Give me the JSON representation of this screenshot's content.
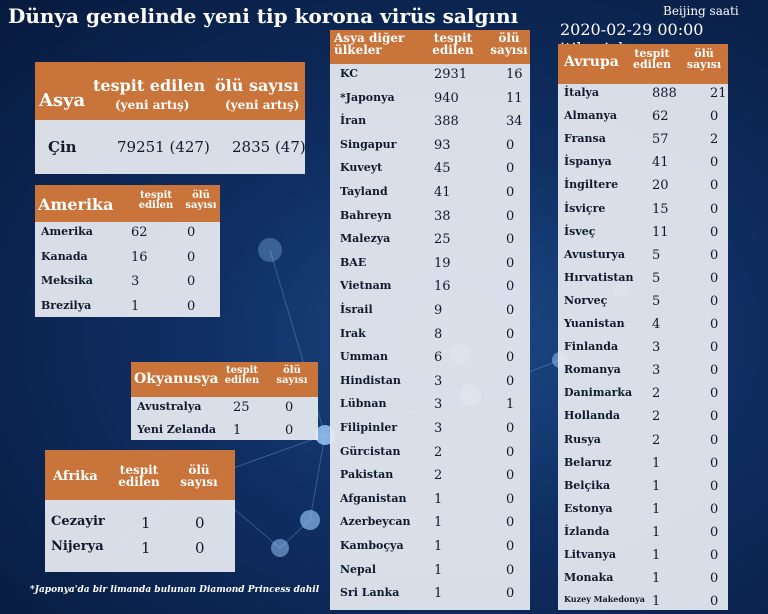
{
  "title": "Dünya genelinde yeni tip korona virüs salgını",
  "beijing_label": "Beijing saati",
  "as_of": "2020-02-29 00:00 itibariyle",
  "footnote": "*Japonya'da bir limanda bulunan Diamond Princess dahil",
  "colors": {
    "header": "#c8743a",
    "background": "#0f2f63",
    "panel": "#e8ecf2",
    "text": "#101a2c"
  },
  "chart_data": [
    {
      "type": "table",
      "region": "Asya",
      "columns": [
        "tespit edilen",
        "(yeni artış)",
        "ölü sayısı",
        "(yeni artış)"
      ],
      "rows": [
        {
          "country": "Çin",
          "confirmed": "79251 (427)",
          "deaths": "2835 (47)"
        }
      ]
    },
    {
      "type": "table",
      "region": "Amerika",
      "columns": [
        "tespit edilen",
        "ölü sayısı"
      ],
      "rows": [
        {
          "country": "Amerika",
          "confirmed": 62,
          "deaths": 0
        },
        {
          "country": "Kanada",
          "confirmed": 16,
          "deaths": 0
        },
        {
          "country": "Meksika",
          "confirmed": 3,
          "deaths": 0
        },
        {
          "country": "Brezilya",
          "confirmed": 1,
          "deaths": 0
        }
      ]
    },
    {
      "type": "table",
      "region": "Okyanusya",
      "columns": [
        "tespit edilen",
        "ölü sayısı"
      ],
      "rows": [
        {
          "country": "Avustralya",
          "confirmed": 25,
          "deaths": 0
        },
        {
          "country": "Yeni Zelanda",
          "confirmed": 1,
          "deaths": 0
        }
      ]
    },
    {
      "type": "table",
      "region": "Afrika",
      "columns": [
        "tespit edilen",
        "ölü sayısı"
      ],
      "rows": [
        {
          "country": "Cezayir",
          "confirmed": 1,
          "deaths": 0
        },
        {
          "country": "Nijerya",
          "confirmed": 1,
          "deaths": 0
        }
      ]
    },
    {
      "type": "table",
      "region": "Asya diğer ülkeler",
      "columns": [
        "tespit edilen",
        "ölü sayısı"
      ],
      "rows": [
        {
          "country": "KC",
          "confirmed": 2931,
          "deaths": 16
        },
        {
          "country": "*Japonya",
          "confirmed": 940,
          "deaths": 11
        },
        {
          "country": "İran",
          "confirmed": 388,
          "deaths": 34
        },
        {
          "country": "Singapur",
          "confirmed": 93,
          "deaths": 0
        },
        {
          "country": "Kuveyt",
          "confirmed": 45,
          "deaths": 0
        },
        {
          "country": "Tayland",
          "confirmed": 41,
          "deaths": 0
        },
        {
          "country": "Bahreyn",
          "confirmed": 38,
          "deaths": 0
        },
        {
          "country": "Malezya",
          "confirmed": 25,
          "deaths": 0
        },
        {
          "country": "BAE",
          "confirmed": 19,
          "deaths": 0
        },
        {
          "country": "Vietnam",
          "confirmed": 16,
          "deaths": 0
        },
        {
          "country": "İsrail",
          "confirmed": 9,
          "deaths": 0
        },
        {
          "country": "Irak",
          "confirmed": 8,
          "deaths": 0
        },
        {
          "country": "Umman",
          "confirmed": 6,
          "deaths": 0
        },
        {
          "country": "Hindistan",
          "confirmed": 3,
          "deaths": 0
        },
        {
          "country": "Lübnan",
          "confirmed": 3,
          "deaths": 1
        },
        {
          "country": "Filipinler",
          "confirmed": 3,
          "deaths": 0
        },
        {
          "country": "Gürcistan",
          "confirmed": 2,
          "deaths": 0
        },
        {
          "country": "Pakistan",
          "confirmed": 2,
          "deaths": 0
        },
        {
          "country": "Afganistan",
          "confirmed": 1,
          "deaths": 0
        },
        {
          "country": "Azerbeycan",
          "confirmed": 1,
          "deaths": 0
        },
        {
          "country": "Kamboçya",
          "confirmed": 1,
          "deaths": 0
        },
        {
          "country": "Nepal",
          "confirmed": 1,
          "deaths": 0
        },
        {
          "country": "Sri Lanka",
          "confirmed": 1,
          "deaths": 0
        }
      ]
    },
    {
      "type": "table",
      "region": "Avrupa",
      "columns": [
        "tespit edilen",
        "ölü sayısı"
      ],
      "rows": [
        {
          "country": "İtalya",
          "confirmed": 888,
          "deaths": 21
        },
        {
          "country": "Almanya",
          "confirmed": 62,
          "deaths": 0
        },
        {
          "country": "Fransa",
          "confirmed": 57,
          "deaths": 2
        },
        {
          "country": "İspanya",
          "confirmed": 41,
          "deaths": 0
        },
        {
          "country": "İngiltere",
          "confirmed": 20,
          "deaths": 0
        },
        {
          "country": "İsviçre",
          "confirmed": 15,
          "deaths": 0
        },
        {
          "country": "İsveç",
          "confirmed": 11,
          "deaths": 0
        },
        {
          "country": "Avusturya",
          "confirmed": 5,
          "deaths": 0
        },
        {
          "country": "Hırvatistan",
          "confirmed": 5,
          "deaths": 0
        },
        {
          "country": "Norveç",
          "confirmed": 5,
          "deaths": 0
        },
        {
          "country": "Yuanistan",
          "confirmed": 4,
          "deaths": 0
        },
        {
          "country": "Finlanda",
          "confirmed": 3,
          "deaths": 0
        },
        {
          "country": "Romanya",
          "confirmed": 3,
          "deaths": 0
        },
        {
          "country": "Danimarka",
          "confirmed": 2,
          "deaths": 0
        },
        {
          "country": "Hollanda",
          "confirmed": 2,
          "deaths": 0
        },
        {
          "country": "Rusya",
          "confirmed": 2,
          "deaths": 0
        },
        {
          "country": "Belaruz",
          "confirmed": 1,
          "deaths": 0
        },
        {
          "country": "Belçika",
          "confirmed": 1,
          "deaths": 0
        },
        {
          "country": "Estonya",
          "confirmed": 1,
          "deaths": 0
        },
        {
          "country": "İzlanda",
          "confirmed": 1,
          "deaths": 0
        },
        {
          "country": "Litvanya",
          "confirmed": 1,
          "deaths": 0
        },
        {
          "country": "Monaka",
          "confirmed": 1,
          "deaths": 0
        },
        {
          "country": "Kuzey Makedonya",
          "confirmed": 1,
          "deaths": 0
        }
      ]
    }
  ]
}
